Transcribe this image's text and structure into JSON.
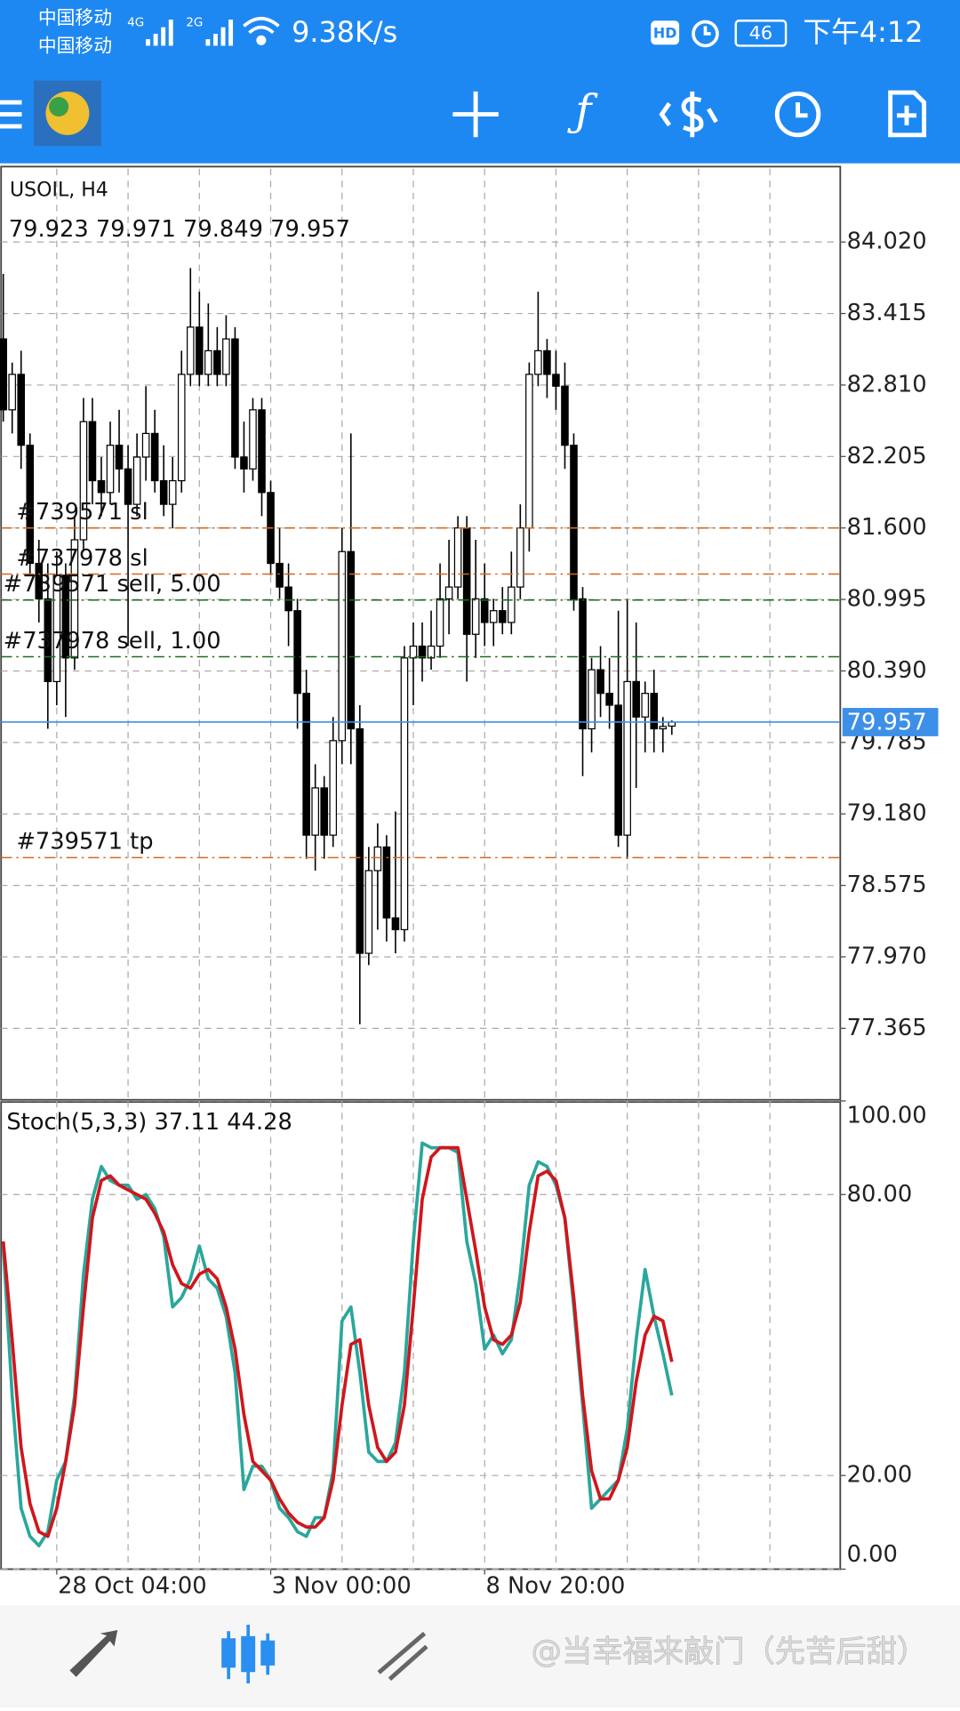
{
  "status_bar": {
    "carrier_1": "中国移动",
    "carrier_2": "中国移动",
    "net_1": "4G",
    "net_2": "2G",
    "speed": "9.38K/s",
    "hd": "HD",
    "battery": "46",
    "time": "下午4:12"
  },
  "chart_data": [
    {
      "type": "candlestick",
      "title": "USOIL, H4",
      "subtitle": "79.923 79.971 79.849 79.957",
      "categories": [
        null,
        null,
        null,
        null,
        null,
        null,
        "28 Oct 04:00",
        null,
        null,
        null,
        null,
        null,
        null,
        null,
        null,
        null,
        null,
        null,
        null,
        null,
        null,
        null,
        null,
        null,
        null,
        null,
        null,
        null,
        null,
        null,
        "3 Nov 00:00",
        null,
        null,
        null,
        null,
        null,
        null,
        null,
        null,
        null,
        null,
        null,
        null,
        null,
        null,
        null,
        null,
        null,
        null,
        null,
        null,
        null,
        null,
        null,
        "8 Nov 20:00",
        null,
        null,
        null,
        null,
        null,
        null,
        null,
        null,
        null,
        null,
        null,
        null,
        null,
        null,
        null,
        null,
        null,
        null,
        null,
        null,
        null
      ],
      "open": [
        83.2,
        82.6,
        82.9,
        82.3,
        81.3,
        81.0,
        80.3,
        81.2,
        80.5,
        81.5,
        82.5,
        82.0,
        81.9,
        82.3,
        82.1,
        81.8,
        82.2,
        82.4,
        82.0,
        81.8,
        82.0,
        82.9,
        83.3,
        82.9,
        83.1,
        82.9,
        83.2,
        82.2,
        82.1,
        82.6,
        81.9,
        81.3,
        81.1,
        80.9,
        80.2,
        79.0,
        79.4,
        79.0,
        79.8,
        81.4,
        79.9,
        78.0,
        78.7,
        78.9,
        78.3,
        78.2,
        80.5,
        80.6,
        80.5,
        80.6,
        81.0,
        81.1,
        81.6,
        80.7,
        81.0,
        80.8,
        80.9,
        80.8,
        81.1,
        81.6,
        82.9,
        83.1,
        82.9,
        82.8,
        82.3,
        81.0,
        79.9,
        80.4,
        80.2,
        80.1,
        79.0,
        80.3,
        80.0,
        80.2,
        79.9,
        79.923
      ],
      "high": [
        83.75,
        83.0,
        83.1,
        82.4,
        81.5,
        81.3,
        81.4,
        81.3,
        81.7,
        82.7,
        82.7,
        82.2,
        82.5,
        82.6,
        82.3,
        82.4,
        82.8,
        82.6,
        82.3,
        82.2,
        83.1,
        83.8,
        83.6,
        83.5,
        83.3,
        83.4,
        83.3,
        82.5,
        82.7,
        82.7,
        82.0,
        81.6,
        81.3,
        81.0,
        80.4,
        79.6,
        79.5,
        80.0,
        81.6,
        82.4,
        80.1,
        78.9,
        79.1,
        79.0,
        79.2,
        80.6,
        80.8,
        80.8,
        80.9,
        81.3,
        81.5,
        81.7,
        81.7,
        81.5,
        81.3,
        81.0,
        81.1,
        81.4,
        81.8,
        83.0,
        83.6,
        83.2,
        83.1,
        83.0,
        82.4,
        81.1,
        80.5,
        80.6,
        80.5,
        80.9,
        81.0,
        80.8,
        80.3,
        80.4,
        80.0,
        79.971
      ],
      "low": [
        82.5,
        82.4,
        82.1,
        81.2,
        80.8,
        79.9,
        80.1,
        80.0,
        80.4,
        81.4,
        81.8,
        81.7,
        81.8,
        81.9,
        80.6,
        81.7,
        82.0,
        81.9,
        81.7,
        81.6,
        81.9,
        82.8,
        82.8,
        82.8,
        82.8,
        82.8,
        82.1,
        81.9,
        82.0,
        81.7,
        81.2,
        81.0,
        80.6,
        79.9,
        78.8,
        78.7,
        78.8,
        78.9,
        79.6,
        79.6,
        77.4,
        77.9,
        78.2,
        78.1,
        78.0,
        78.1,
        80.1,
        80.3,
        80.4,
        80.5,
        80.7,
        81.0,
        80.3,
        80.5,
        80.6,
        80.6,
        80.7,
        80.7,
        81.0,
        81.4,
        82.8,
        82.7,
        82.6,
        82.1,
        80.9,
        79.5,
        79.7,
        80.0,
        79.9,
        78.9,
        78.8,
        79.4,
        79.7,
        79.7,
        79.7,
        79.849
      ],
      "close": [
        82.6,
        82.9,
        82.3,
        81.3,
        81.0,
        80.3,
        81.2,
        80.5,
        81.5,
        82.5,
        82.0,
        81.9,
        82.3,
        82.1,
        81.8,
        82.2,
        82.4,
        82.0,
        81.8,
        82.0,
        82.9,
        83.3,
        82.9,
        83.1,
        82.9,
        83.2,
        82.2,
        82.1,
        82.6,
        81.9,
        81.3,
        81.1,
        80.9,
        80.2,
        79.0,
        79.4,
        79.0,
        79.8,
        81.4,
        79.9,
        78.0,
        78.7,
        78.9,
        78.3,
        78.2,
        80.5,
        80.6,
        80.5,
        80.6,
        81.0,
        81.1,
        81.6,
        80.7,
        81.0,
        80.8,
        80.9,
        80.8,
        81.1,
        81.6,
        82.9,
        83.1,
        82.9,
        82.8,
        82.3,
        81.0,
        79.9,
        80.4,
        80.2,
        80.1,
        79.0,
        80.3,
        80.0,
        80.2,
        79.9,
        79.92,
        79.957
      ],
      "ylim": [
        76.76,
        84.64
      ],
      "yticks": [
        {
          "value": 84.02,
          "label": "84.020"
        },
        {
          "value": 83.415,
          "label": "83.415"
        },
        {
          "value": 82.81,
          "label": "82.810"
        },
        {
          "value": 82.205,
          "label": "82.205"
        },
        {
          "value": 81.6,
          "label": "81.600"
        },
        {
          "value": 80.995,
          "label": "80.995"
        },
        {
          "value": 80.39,
          "label": "80.390"
        },
        {
          "value": 79.785,
          "label": "79.785"
        },
        {
          "value": 79.18,
          "label": "79.180"
        },
        {
          "value": 78.575,
          "label": "78.575"
        },
        {
          "value": 77.97,
          "label": "77.970"
        },
        {
          "value": 77.365,
          "label": "77.365"
        }
      ],
      "grid": true,
      "levels": [
        {
          "label": "#739571 sl",
          "value": 81.6,
          "color": "#d2691e"
        },
        {
          "label": "#737978 sl",
          "value": 81.21,
          "color": "#d2691e"
        },
        {
          "label": "#739571 sell, 5.00",
          "value": 80.99,
          "color": "#1e6b1e"
        },
        {
          "label": "#737978 sell, 1.00",
          "value": 80.51,
          "color": "#1e6b1e"
        },
        {
          "label": "#739571 tp",
          "value": 78.81,
          "color": "#d2691e"
        }
      ],
      "current_price": {
        "value": 79.957,
        "color": "#3d8fe8"
      }
    },
    {
      "type": "line",
      "title": "Stoch(5,3,3) 37.11 44.28",
      "series": [
        {
          "color": "#2aa79b",
          "values": [
            69,
            37,
            13,
            7,
            5,
            8,
            19,
            23,
            37,
            63,
            79,
            86,
            83,
            82,
            82,
            79,
            80,
            77,
            71,
            56,
            58,
            62,
            69,
            62,
            60,
            54,
            42,
            17,
            22,
            22,
            19,
            13,
            11,
            8,
            7,
            11,
            11,
            21,
            53,
            56,
            42,
            25,
            23,
            23,
            27,
            42,
            70,
            91,
            90,
            90,
            90,
            89,
            70,
            61,
            47,
            50,
            46,
            49,
            63,
            82,
            87,
            86,
            82,
            75,
            56,
            35,
            13,
            15,
            17,
            19,
            30,
            49,
            64,
            54,
            46,
            37.11
          ]
        },
        {
          "color": "#d0161c",
          "values": [
            70,
            49,
            26,
            14,
            8,
            7,
            13,
            23,
            35,
            56,
            75,
            83,
            84,
            82,
            81,
            80,
            79,
            76,
            72,
            65,
            61,
            60,
            63,
            64,
            62,
            56,
            47,
            33,
            23,
            21,
            19,
            15,
            12,
            10,
            9,
            9,
            11,
            19,
            35,
            48,
            49,
            35,
            26,
            23,
            25,
            35,
            56,
            79,
            88,
            90,
            90,
            90,
            79,
            68,
            56,
            49,
            48,
            50,
            57,
            72,
            84,
            85,
            83,
            75,
            58,
            37,
            21,
            15,
            15,
            19,
            26,
            40,
            50,
            54,
            53,
            44.28
          ]
        }
      ],
      "ylim": [
        0,
        100
      ],
      "yticks": [
        {
          "value": 100,
          "label": "100.00"
        },
        {
          "value": 80,
          "label": "80.00"
        },
        {
          "value": 20,
          "label": "20.00"
        },
        {
          "value": 0,
          "label": "0.00"
        }
      ],
      "grid": true
    }
  ],
  "watermark": "@当幸福来敲门（先苦后甜）"
}
